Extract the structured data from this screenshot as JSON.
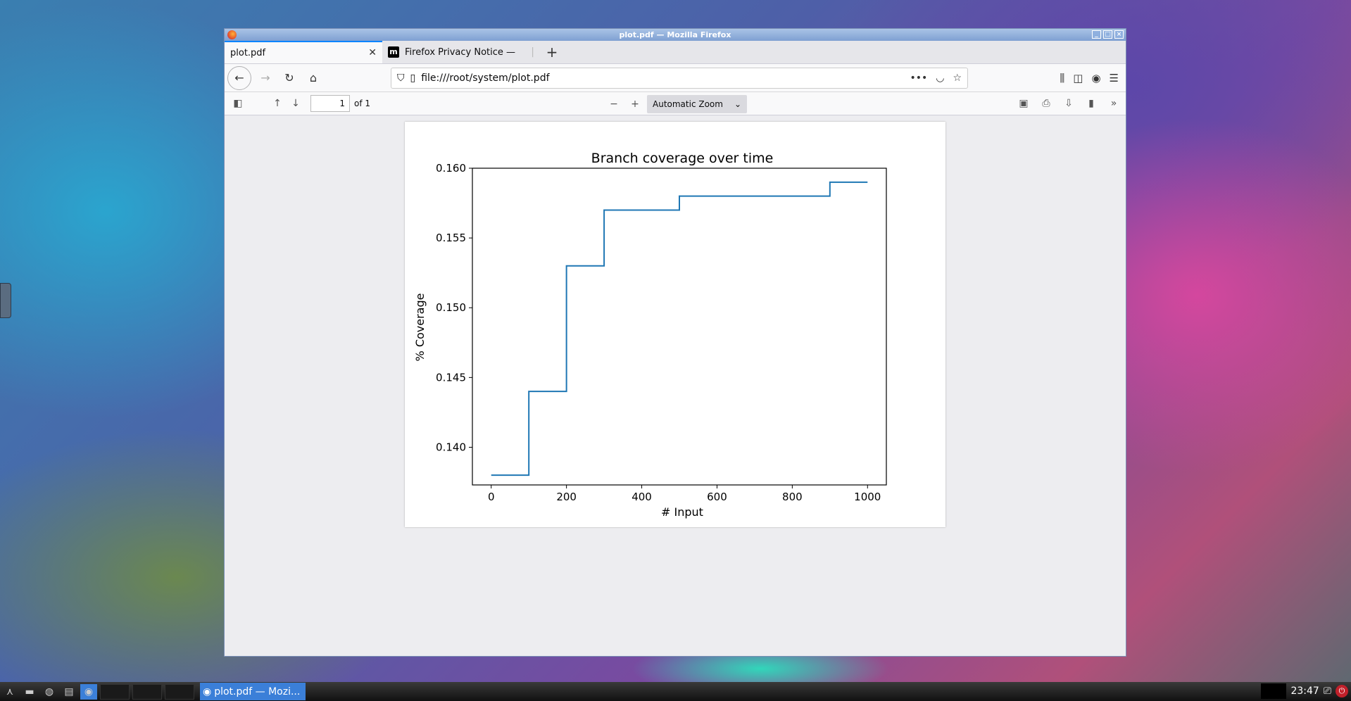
{
  "window": {
    "title": "plot.pdf — Mozilla Firefox"
  },
  "tabs": [
    {
      "label": "plot.pdf",
      "active": true
    },
    {
      "label": "Firefox Privacy Notice —",
      "active": false
    }
  ],
  "urlbar": {
    "url": "file:///root/system/plot.pdf"
  },
  "pdf_toolbar": {
    "page_value": "1",
    "page_of": "of 1",
    "zoom": "Automatic Zoom"
  },
  "chart_data": {
    "type": "line",
    "title": "Branch coverage over time",
    "xlabel": "# Input",
    "ylabel": "% Coverage",
    "step": "post",
    "x": [
      0,
      100,
      200,
      300,
      400,
      500,
      600,
      700,
      800,
      900,
      1000
    ],
    "y": [
      0.138,
      0.144,
      0.153,
      0.157,
      0.157,
      0.158,
      0.158,
      0.158,
      0.158,
      0.159,
      0.159
    ],
    "xlim": [
      -50,
      1050
    ],
    "ylim": [
      0.1373,
      0.16
    ],
    "xticks": [
      "0",
      "200",
      "400",
      "600",
      "800",
      "1000"
    ],
    "xtick_values": [
      0,
      200,
      400,
      600,
      800,
      1000
    ],
    "yticks": [
      "0.140",
      "0.145",
      "0.150",
      "0.155",
      "0.160"
    ],
    "ytick_values": [
      0.14,
      0.145,
      0.15,
      0.155,
      0.16
    ],
    "line_color": "#1f77b4",
    "grid": false
  },
  "taskbar": {
    "task_label": "plot.pdf — Mozi...",
    "clock": "23:47"
  }
}
